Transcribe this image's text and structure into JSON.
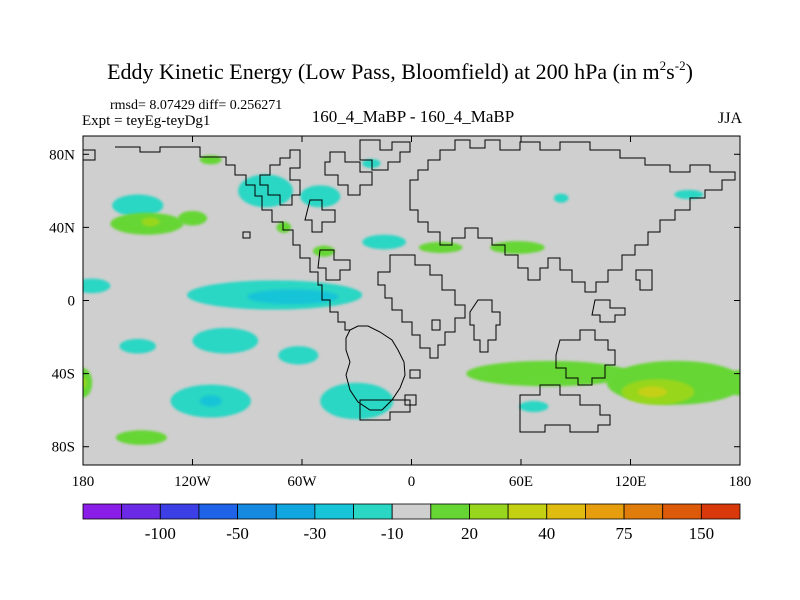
{
  "chart_data": {
    "type": "heatmap",
    "title_main": "Eddy Kinetic Energy (Low Pass, Bloomfield) at 200 hPa (in m",
    "title_sup1": "2",
    "title_mid": "s",
    "title_sup2": "-2",
    "title_end": ")",
    "stats_text": "rmsd= 8.07429  diff= 0.256271",
    "expt_text": "Expt = teyEg-teyDg1",
    "center_label": "160_4_MaBP - 160_4_MaBP",
    "season": "JJA",
    "x_ticks": [
      {
        "lon": -180,
        "label": "180"
      },
      {
        "lon": -120,
        "label": "120W"
      },
      {
        "lon": -60,
        "label": "60W"
      },
      {
        "lon": 0,
        "label": "0"
      },
      {
        "lon": 60,
        "label": "60E"
      },
      {
        "lon": 120,
        "label": "120E"
      },
      {
        "lon": 180,
        "label": "180"
      }
    ],
    "y_ticks": [
      {
        "lat": 80,
        "label": "80N"
      },
      {
        "lat": 40,
        "label": "40N"
      },
      {
        "lat": 0,
        "label": "0"
      },
      {
        "lat": -40,
        "label": "40S"
      },
      {
        "lat": -80,
        "label": "80S"
      }
    ],
    "xlim": [
      -180,
      180
    ],
    "ylim": [
      -90,
      90
    ],
    "colorbar": {
      "colors": [
        "#8a1ee8",
        "#6a2ae6",
        "#3c3fe6",
        "#1f63e8",
        "#1689e0",
        "#10a6e0",
        "#18c4d8",
        "#2ad6c4",
        "#cfcfcf",
        "#66d634",
        "#98d61e",
        "#c4d012",
        "#e0bc10",
        "#e69e0e",
        "#e07c0c",
        "#dc5a0a",
        "#d8380a"
      ],
      "labels": [
        {
          "boundary": 2,
          "text": "-100"
        },
        {
          "boundary": 4,
          "text": "-50"
        },
        {
          "boundary": 6,
          "text": "-30"
        },
        {
          "boundary": 8,
          "text": "-10"
        },
        {
          "boundary": 10,
          "text": "20"
        },
        {
          "boundary": 12,
          "text": "40"
        },
        {
          "boundary": 14,
          "text": "75"
        },
        {
          "boundary": 16,
          "text": "150"
        }
      ]
    },
    "regions": [
      {
        "name": "n-pacific-cyan",
        "lon": -150,
        "lat": 52,
        "rx": 14,
        "ry": 6,
        "color": "#2ad6c4"
      },
      {
        "name": "n-pacific-green",
        "lon": -145,
        "lat": 42,
        "rx": 20,
        "ry": 6,
        "color": "#66d634"
      },
      {
        "name": "n-pacific-green-core",
        "lon": -143,
        "lat": 43,
        "rx": 5,
        "ry": 2.5,
        "color": "#98d61e"
      },
      {
        "name": "n-pacific-green-2",
        "lon": -120,
        "lat": 45,
        "rx": 8,
        "ry": 4,
        "color": "#66d634"
      },
      {
        "name": "arctic-green-1",
        "lon": -110,
        "lat": 77,
        "rx": 6,
        "ry": 2.5,
        "color": "#66d634"
      },
      {
        "name": "na-west-cyan",
        "lon": -80,
        "lat": 60,
        "rx": 15,
        "ry": 9,
        "color": "#2ad6c4"
      },
      {
        "name": "na-cyan-2",
        "lon": -50,
        "lat": 57,
        "rx": 11,
        "ry": 6,
        "color": "#2ad6c4"
      },
      {
        "name": "canada-green",
        "lon": -70,
        "lat": 40,
        "rx": 4,
        "ry": 3,
        "color": "#66d634"
      },
      {
        "name": "us-green",
        "lon": -48,
        "lat": 27,
        "rx": 6,
        "ry": 3,
        "color": "#66d634"
      },
      {
        "name": "n-atlantic-cyan",
        "lon": -15,
        "lat": 32,
        "rx": 12,
        "ry": 4,
        "color": "#2ad6c4"
      },
      {
        "name": "arctic-cyan",
        "lon": -22,
        "lat": 75,
        "rx": 5,
        "ry": 2.5,
        "color": "#2ad6c4"
      },
      {
        "name": "europe-green",
        "lon": 16,
        "lat": 29,
        "rx": 12,
        "ry": 3,
        "color": "#66d634"
      },
      {
        "name": "asia-green",
        "lon": 58,
        "lat": 29,
        "rx": 15,
        "ry": 3.5,
        "color": "#66d634"
      },
      {
        "name": "asia-cyan",
        "lon": 82,
        "lat": 56,
        "rx": 4,
        "ry": 2.5,
        "color": "#2ad6c4"
      },
      {
        "name": "ne-asia-cyan",
        "lon": 152,
        "lat": 58,
        "rx": 8,
        "ry": 2.5,
        "color": "#2ad6c4"
      },
      {
        "name": "pacific-tropical-cyan",
        "lon": -175,
        "lat": 8,
        "rx": 10,
        "ry": 4,
        "color": "#2ad6c4"
      },
      {
        "name": "equatorial-cyan-band",
        "lon": -75,
        "lat": 3,
        "rx": 48,
        "ry": 8,
        "color": "#2ad6c4"
      },
      {
        "name": "equatorial-blue",
        "lon": -65,
        "lat": 2,
        "rx": 25,
        "ry": 4,
        "color": "#18c4d8"
      },
      {
        "name": "sw-pacific-cyan",
        "lon": -150,
        "lat": -25,
        "rx": 10,
        "ry": 4,
        "color": "#2ad6c4"
      },
      {
        "name": "s-pacific-cyan",
        "lon": -102,
        "lat": -22,
        "rx": 18,
        "ry": 7,
        "color": "#2ad6c4"
      },
      {
        "name": "s-pacific-cyan-2",
        "lon": -62,
        "lat": -30,
        "rx": 11,
        "ry": 5,
        "color": "#2ad6c4"
      },
      {
        "name": "s-pacific-cyan-3",
        "lon": -110,
        "lat": -55,
        "rx": 22,
        "ry": 9,
        "color": "#2ad6c4"
      },
      {
        "name": "s-pacific-blue",
        "lon": -110,
        "lat": -55,
        "rx": 6,
        "ry": 3,
        "color": "#18c4d8"
      },
      {
        "name": "s-pacific-green",
        "lon": -148,
        "lat": -75,
        "rx": 14,
        "ry": 4,
        "color": "#66d634"
      },
      {
        "name": "s-atlantic-cyan",
        "lon": -30,
        "lat": -55,
        "rx": 20,
        "ry": 10,
        "color": "#2ad6c4"
      },
      {
        "name": "indian-green-band",
        "lon": 75,
        "lat": -40,
        "rx": 45,
        "ry": 7,
        "color": "#66d634"
      },
      {
        "name": "s-indian-green-2",
        "lon": 145,
        "lat": -45,
        "rx": 38,
        "ry": 12,
        "color": "#66d634"
      },
      {
        "name": "s-indian-yellow-1",
        "lon": 135,
        "lat": -50,
        "rx": 20,
        "ry": 7,
        "color": "#98d61e"
      },
      {
        "name": "s-indian-yellow-core",
        "lon": 132,
        "lat": -50,
        "rx": 8,
        "ry": 3,
        "color": "#c4d012"
      },
      {
        "name": "west-edge-green",
        "lon": -180,
        "lat": -45,
        "rx": 5,
        "ry": 8,
        "color": "#66d634"
      },
      {
        "name": "west-edge-yellow",
        "lon": -180,
        "lat": -45,
        "rx": 2,
        "ry": 3,
        "color": "#98d61e"
      },
      {
        "name": "east-edge-green",
        "lon": 179,
        "lat": -45,
        "rx": 4,
        "ry": 7,
        "color": "#66d634"
      },
      {
        "name": "s-indian-cyan",
        "lon": 67,
        "lat": -58,
        "rx": 8,
        "ry": 3,
        "color": "#2ad6c4"
      }
    ]
  }
}
